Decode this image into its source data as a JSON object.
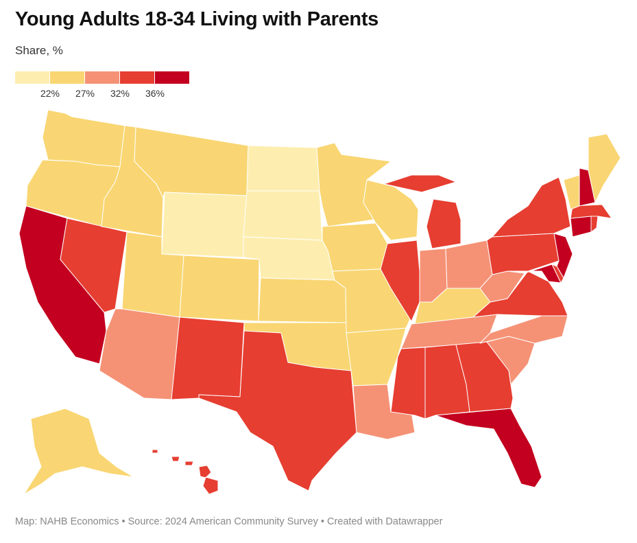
{
  "header": {
    "title": "Young Adults 18-34 Living with Parents",
    "subtitle": "Share, %"
  },
  "legend": {
    "colors": [
      "#fdeeb0",
      "#f9d673",
      "#f59276",
      "#e63e31",
      "#c3001f"
    ],
    "ticks": [
      "22%",
      "27%",
      "32%",
      "36%"
    ]
  },
  "map": {
    "region": "United States",
    "bins": [
      {
        "range": "under 22%",
        "color": "#fdeeb0",
        "states": [
          "WY",
          "ND",
          "SD",
          "NE"
        ]
      },
      {
        "range": "22–27%",
        "color": "#f9d673",
        "states": [
          "WA",
          "OR",
          "ID",
          "MT",
          "UT",
          "CO",
          "KS",
          "OK",
          "MN",
          "IA",
          "MO",
          "AR",
          "WI",
          "KY",
          "ME",
          "VT",
          "AK"
        ]
      },
      {
        "range": "27–32%",
        "color": "#f59276",
        "states": [
          "AZ",
          "LA",
          "TN",
          "NC",
          "SC",
          "IN",
          "OH",
          "WV"
        ]
      },
      {
        "range": "32–36%",
        "color": "#e63e31",
        "states": [
          "NV",
          "NM",
          "TX",
          "MI",
          "IL",
          "MS",
          "AL",
          "GA",
          "VA",
          "PA",
          "NY",
          "MA",
          "RI",
          "HI",
          "DE"
        ]
      },
      {
        "range": "36% and above",
        "color": "#c3001f",
        "states": [
          "CA",
          "FL",
          "NJ",
          "CT",
          "MD",
          "NH"
        ]
      }
    ]
  },
  "footer": {
    "text": "Map: NAHB Economics • Source: 2024 American Community Survey  • Created with Datawrapper"
  }
}
